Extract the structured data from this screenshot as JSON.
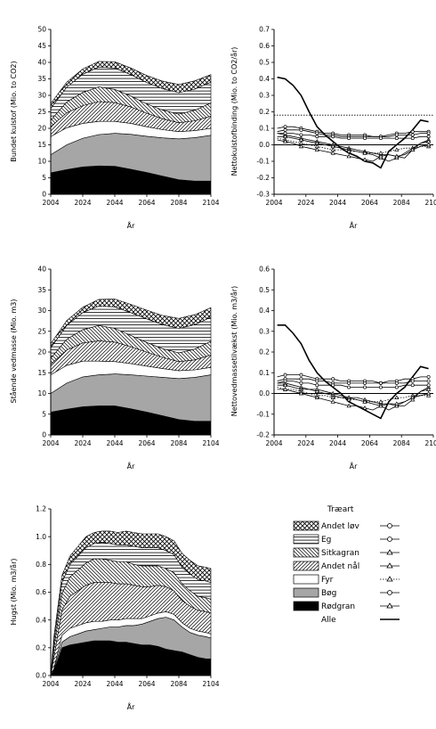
{
  "x_ticks": [
    "2004",
    "2024",
    "2044",
    "2064",
    "2084",
    "2104"
  ],
  "x_label": "År",
  "legend": {
    "title": "Træart",
    "items": [
      {
        "label": "Andet løv",
        "fill": "crosshatch",
        "marker": "circle"
      },
      {
        "label": "Eg",
        "fill": "hlines",
        "marker": "circle"
      },
      {
        "label": "Sitkagran",
        "fill": "bdiag",
        "marker": "triangle"
      },
      {
        "label": "Andet nål",
        "fill": "fdiag",
        "marker": "triangle"
      },
      {
        "label": "Fyr",
        "fill": "white",
        "marker": "triangle"
      },
      {
        "label": "Bøg",
        "fill": "gray",
        "marker": "circle"
      },
      {
        "label": "Rødgran",
        "fill": "black",
        "marker": "triangle"
      },
      {
        "label": "Alle",
        "fill": "none",
        "marker": "none"
      }
    ]
  },
  "colors": {
    "bog": "#a6a6a6",
    "rodgran": "#000000",
    "line": "#000000"
  },
  "chart_data": [
    {
      "id": "carbon-stock",
      "type": "area",
      "ylabel": "Bundet kulstof (Mio. to CO2)",
      "ylim": [
        0,
        50
      ],
      "yticks": [
        0,
        5,
        10,
        15,
        20,
        25,
        30,
        35,
        40,
        45,
        50
      ],
      "xlim": [
        2004,
        2104
      ],
      "x": [
        2004,
        2014,
        2024,
        2034,
        2044,
        2054,
        2064,
        2074,
        2084,
        2094,
        2104
      ],
      "stack_order": [
        "Rødgran",
        "Bøg",
        "Fyr",
        "Andet nål",
        "Sitkagran",
        "Eg",
        "Andet løv"
      ],
      "series": [
        {
          "name": "Rødgran",
          "values": [
            6.5,
            7.5,
            8.3,
            8.6,
            8.5,
            7.6,
            6.6,
            5.5,
            4.4,
            4.0,
            4.0
          ]
        },
        {
          "name": "Bøg",
          "values": [
            5.5,
            7.5,
            8.7,
            9.5,
            10.0,
            10.6,
            11.0,
            11.6,
            12.4,
            13.2,
            13.9
          ]
        },
        {
          "name": "Fyr",
          "values": [
            5.5,
            5.2,
            4.5,
            4.0,
            3.6,
            3.3,
            2.9,
            2.5,
            2.2,
            2.1,
            2.1
          ]
        },
        {
          "name": "Andet nål",
          "values": [
            3.0,
            4.5,
            5.4,
            6.0,
            5.7,
            5.0,
            4.1,
            3.3,
            2.7,
            3.0,
            3.7
          ]
        },
        {
          "name": "Sitkagran",
          "values": [
            2.0,
            3.3,
            4.0,
            4.5,
            4.0,
            3.3,
            2.8,
            2.6,
            2.6,
            3.2,
            4.0
          ]
        },
        {
          "name": "Eg",
          "values": [
            3.5,
            4.5,
            5.5,
            6.0,
            6.5,
            6.5,
            6.5,
            6.5,
            6.5,
            6.4,
            6.3
          ]
        },
        {
          "name": "Andet løv",
          "values": [
            1.5,
            1.5,
            1.6,
            1.7,
            1.9,
            2.0,
            2.1,
            2.3,
            2.5,
            2.5,
            2.3
          ]
        }
      ]
    },
    {
      "id": "carbon-flux",
      "type": "line",
      "ylabel": "Nettokulstofbinding (Mio. to CO2/år)",
      "ylim": [
        -0.3,
        0.7
      ],
      "yticks": [
        -0.3,
        -0.2,
        -0.1,
        0.0,
        0.1,
        0.2,
        0.3,
        0.4,
        0.5,
        0.6,
        0.7
      ],
      "xlim": [
        2004,
        2104
      ],
      "reference_line": 0.18,
      "x": [
        2006,
        2011,
        2016,
        2021,
        2026,
        2031,
        2036,
        2041,
        2046,
        2051,
        2056,
        2061,
        2066,
        2071,
        2076,
        2081,
        2086,
        2091,
        2096,
        2101
      ],
      "series": [
        {
          "name": "Alle",
          "marker": "none",
          "values": [
            0.41,
            0.4,
            0.36,
            0.3,
            0.2,
            0.11,
            0.06,
            0.02,
            -0.02,
            -0.05,
            -0.07,
            -0.1,
            -0.11,
            -0.14,
            -0.04,
            0.0,
            0.04,
            0.09,
            0.15,
            0.14
          ]
        },
        {
          "name": "Andet løv",
          "marker": "circle",
          "values": [
            0.1,
            0.11,
            0.11,
            0.1,
            0.09,
            0.08,
            0.07,
            0.07,
            0.06,
            0.06,
            0.06,
            0.06,
            0.05,
            0.05,
            0.06,
            0.07,
            0.07,
            0.08,
            0.08,
            0.08
          ]
        },
        {
          "name": "Eg",
          "marker": "circle",
          "values": [
            0.08,
            0.09,
            0.09,
            0.09,
            0.08,
            0.07,
            0.06,
            0.06,
            0.05,
            0.05,
            0.05,
            0.05,
            0.05,
            0.05,
            0.05,
            0.06,
            0.06,
            0.06,
            0.07,
            0.07
          ]
        },
        {
          "name": "Sitkagran",
          "marker": "triangle",
          "values": [
            0.07,
            0.06,
            0.05,
            0.04,
            0.03,
            0.02,
            0.01,
            0.0,
            -0.01,
            -0.02,
            -0.03,
            -0.04,
            -0.05,
            -0.06,
            -0.06,
            -0.07,
            -0.08,
            -0.03,
            0.01,
            0.03
          ]
        },
        {
          "name": "Andet nål",
          "marker": "triangle",
          "values": [
            0.05,
            0.05,
            0.04,
            0.03,
            0.02,
            0.01,
            0.0,
            -0.01,
            -0.02,
            -0.03,
            -0.04,
            -0.05,
            -0.06,
            -0.08,
            -0.1,
            -0.08,
            -0.05,
            -0.02,
            0.01,
            0.02
          ]
        },
        {
          "name": "Fyr",
          "marker": "triangle",
          "values": [
            0.04,
            0.03,
            0.02,
            0.01,
            0.0,
            -0.01,
            -0.02,
            -0.03,
            -0.03,
            -0.04,
            -0.04,
            -0.05,
            -0.05,
            -0.05,
            -0.04,
            -0.03,
            -0.02,
            -0.02,
            -0.01,
            -0.01
          ]
        },
        {
          "name": "Bøg",
          "marker": "circle",
          "values": [
            0.07,
            0.07,
            0.07,
            0.06,
            0.06,
            0.05,
            0.05,
            0.05,
            0.04,
            0.04,
            0.04,
            0.04,
            0.04,
            0.04,
            0.04,
            0.04,
            0.04,
            0.04,
            0.05,
            0.05
          ]
        },
        {
          "name": "Rødgran",
          "marker": "triangle",
          "values": [
            0.03,
            0.02,
            0.01,
            -0.01,
            -0.02,
            -0.03,
            -0.04,
            -0.05,
            -0.06,
            -0.07,
            -0.08,
            -0.09,
            -0.1,
            -0.07,
            -0.06,
            -0.07,
            -0.06,
            -0.03,
            -0.01,
            0.0
          ]
        }
      ]
    },
    {
      "id": "wood-stock",
      "type": "area",
      "ylabel": "Stående vedmasse (Mio. m3)",
      "ylim": [
        0,
        40
      ],
      "yticks": [
        0,
        5,
        10,
        15,
        20,
        25,
        30,
        35,
        40
      ],
      "xlim": [
        2004,
        2104
      ],
      "x": [
        2004,
        2014,
        2024,
        2034,
        2044,
        2054,
        2064,
        2074,
        2084,
        2094,
        2104
      ],
      "stack_order": [
        "Rødgran",
        "Bøg",
        "Fyr",
        "Andet nål",
        "Sitkagran",
        "Eg",
        "Andet løv"
      ],
      "series": [
        {
          "name": "Rødgran",
          "values": [
            5.5,
            6.2,
            6.8,
            7.0,
            7.0,
            6.3,
            5.5,
            4.6,
            3.7,
            3.3,
            3.3
          ]
        },
        {
          "name": "Bøg",
          "values": [
            4.5,
            6.3,
            7.2,
            7.5,
            7.7,
            8.2,
            8.7,
            9.3,
            9.9,
            10.6,
            11.2
          ]
        },
        {
          "name": "Fyr",
          "values": [
            4.5,
            4.3,
            3.8,
            3.3,
            3.0,
            2.7,
            2.4,
            2.1,
            1.9,
            1.8,
            1.8
          ]
        },
        {
          "name": "Andet nål",
          "values": [
            2.5,
            3.7,
            4.4,
            4.9,
            4.7,
            4.1,
            3.4,
            2.7,
            2.2,
            2.4,
            3.0
          ]
        },
        {
          "name": "Sitkagran",
          "values": [
            1.5,
            2.6,
            3.2,
            3.7,
            3.3,
            2.7,
            2.3,
            2.1,
            2.1,
            2.6,
            3.3
          ]
        },
        {
          "name": "Eg",
          "values": [
            2.5,
            3.3,
            4.1,
            4.7,
            5.2,
            5.5,
            5.7,
            5.8,
            5.9,
            5.9,
            5.8
          ]
        },
        {
          "name": "Andet løv",
          "values": [
            1.0,
            1.2,
            1.3,
            1.6,
            1.9,
            2.0,
            2.1,
            2.2,
            2.4,
            2.4,
            2.3
          ]
        }
      ]
    },
    {
      "id": "wood-growth",
      "type": "line",
      "ylabel": "Nettovedmassetilvækst (Mio. m3/år)",
      "ylim": [
        -0.2,
        0.6
      ],
      "yticks": [
        -0.2,
        -0.1,
        0.0,
        0.1,
        0.2,
        0.3,
        0.4,
        0.5,
        0.6
      ],
      "xlim": [
        2004,
        2104
      ],
      "x": [
        2006,
        2011,
        2016,
        2021,
        2026,
        2031,
        2036,
        2041,
        2046,
        2051,
        2056,
        2061,
        2066,
        2071,
        2076,
        2081,
        2086,
        2091,
        2096,
        2101
      ],
      "series": [
        {
          "name": "Alle",
          "marker": "none",
          "values": [
            0.33,
            0.33,
            0.29,
            0.24,
            0.16,
            0.1,
            0.06,
            0.03,
            0.0,
            -0.04,
            -0.06,
            -0.08,
            -0.1,
            -0.12,
            -0.04,
            0.0,
            0.03,
            0.08,
            0.13,
            0.12
          ]
        },
        {
          "name": "Andet løv",
          "marker": "circle",
          "values": [
            0.08,
            0.09,
            0.09,
            0.09,
            0.08,
            0.07,
            0.07,
            0.07,
            0.06,
            0.06,
            0.06,
            0.06,
            0.06,
            0.05,
            0.06,
            0.06,
            0.07,
            0.07,
            0.08,
            0.08
          ]
        },
        {
          "name": "Eg",
          "marker": "circle",
          "values": [
            0.06,
            0.07,
            0.07,
            0.07,
            0.07,
            0.06,
            0.06,
            0.05,
            0.05,
            0.05,
            0.05,
            0.05,
            0.05,
            0.05,
            0.05,
            0.05,
            0.05,
            0.06,
            0.06,
            0.06
          ]
        },
        {
          "name": "Sitkagran",
          "marker": "triangle",
          "values": [
            0.05,
            0.05,
            0.04,
            0.03,
            0.02,
            0.02,
            0.01,
            0.0,
            -0.01,
            -0.02,
            -0.02,
            -0.03,
            -0.04,
            -0.05,
            -0.05,
            -0.06,
            -0.06,
            -0.03,
            0.01,
            0.03
          ]
        },
        {
          "name": "Andet nål",
          "marker": "triangle",
          "values": [
            0.04,
            0.04,
            0.03,
            0.02,
            0.02,
            0.01,
            0.0,
            -0.01,
            -0.02,
            -0.02,
            -0.03,
            -0.04,
            -0.05,
            -0.06,
            -0.08,
            -0.06,
            -0.04,
            -0.02,
            0.01,
            0.02
          ]
        },
        {
          "name": "Fyr",
          "marker": "triangle",
          "values": [
            0.03,
            0.02,
            0.02,
            0.01,
            0.0,
            -0.01,
            -0.01,
            -0.02,
            -0.02,
            -0.03,
            -0.03,
            -0.04,
            -0.04,
            -0.04,
            -0.03,
            -0.02,
            -0.02,
            -0.01,
            -0.01,
            -0.01
          ]
        },
        {
          "name": "Bøg",
          "marker": "circle",
          "values": [
            0.05,
            0.06,
            0.06,
            0.05,
            0.05,
            0.04,
            0.04,
            0.04,
            0.04,
            0.03,
            0.03,
            0.03,
            0.03,
            0.03,
            0.03,
            0.03,
            0.04,
            0.04,
            0.04,
            0.04
          ]
        },
        {
          "name": "Rødgran",
          "marker": "triangle",
          "values": [
            0.02,
            0.02,
            0.01,
            0.0,
            -0.01,
            -0.02,
            -0.03,
            -0.04,
            -0.05,
            -0.06,
            -0.06,
            -0.07,
            -0.08,
            -0.06,
            -0.05,
            -0.05,
            -0.04,
            -0.02,
            -0.01,
            0.0
          ]
        }
      ]
    },
    {
      "id": "harvest",
      "type": "area",
      "ylabel": "Hugst (Mio. m3/år)",
      "ylim": [
        0,
        1.2
      ],
      "yticks": [
        0.0,
        0.2,
        0.4,
        0.6,
        0.8,
        1.0,
        1.2
      ],
      "xlim": [
        2004,
        2104
      ],
      "x": [
        2004,
        2006,
        2011,
        2016,
        2021,
        2026,
        2031,
        2036,
        2041,
        2046,
        2051,
        2056,
        2061,
        2066,
        2071,
        2076,
        2081,
        2086,
        2091,
        2096,
        2101,
        2104
      ],
      "stack_order": [
        "Rødgran",
        "Bøg",
        "Fyr",
        "Andet nål",
        "Sitkagran",
        "Eg",
        "Andet løv"
      ],
      "series": [
        {
          "name": "Rødgran",
          "values": [
            0.0,
            0.03,
            0.2,
            0.22,
            0.23,
            0.24,
            0.25,
            0.25,
            0.25,
            0.24,
            0.24,
            0.23,
            0.22,
            0.22,
            0.21,
            0.19,
            0.18,
            0.17,
            0.15,
            0.13,
            0.12,
            0.12
          ]
        },
        {
          "name": "Bøg",
          "values": [
            0.0,
            0.01,
            0.04,
            0.06,
            0.07,
            0.08,
            0.08,
            0.09,
            0.1,
            0.11,
            0.12,
            0.13,
            0.15,
            0.17,
            0.2,
            0.23,
            0.22,
            0.18,
            0.16,
            0.16,
            0.16,
            0.15
          ]
        },
        {
          "name": "Fyr",
          "values": [
            0.0,
            0.01,
            0.05,
            0.06,
            0.06,
            0.06,
            0.06,
            0.05,
            0.05,
            0.05,
            0.05,
            0.05,
            0.04,
            0.04,
            0.04,
            0.04,
            0.04,
            0.03,
            0.03,
            0.03,
            0.03,
            0.03
          ]
        },
        {
          "name": "Andet nål",
          "values": [
            0.0,
            0.08,
            0.18,
            0.23,
            0.25,
            0.27,
            0.28,
            0.28,
            0.27,
            0.26,
            0.25,
            0.24,
            0.23,
            0.21,
            0.2,
            0.18,
            0.17,
            0.16,
            0.16,
            0.15,
            0.15,
            0.15
          ]
        },
        {
          "name": "Sitkagran",
          "values": [
            0.0,
            0.06,
            0.12,
            0.14,
            0.15,
            0.16,
            0.17,
            0.17,
            0.16,
            0.16,
            0.16,
            0.15,
            0.15,
            0.15,
            0.14,
            0.13,
            0.13,
            0.12,
            0.11,
            0.1,
            0.1,
            0.1
          ]
        },
        {
          "name": "Eg",
          "values": [
            0.0,
            0.05,
            0.08,
            0.09,
            0.1,
            0.11,
            0.11,
            0.12,
            0.12,
            0.12,
            0.12,
            0.13,
            0.13,
            0.13,
            0.13,
            0.13,
            0.13,
            0.12,
            0.12,
            0.12,
            0.12,
            0.12
          ]
        },
        {
          "name": "Andet løv",
          "values": [
            0.0,
            0.04,
            0.05,
            0.06,
            0.07,
            0.08,
            0.08,
            0.08,
            0.09,
            0.09,
            0.1,
            0.1,
            0.1,
            0.1,
            0.1,
            0.1,
            0.1,
            0.1,
            0.1,
            0.1,
            0.1,
            0.1
          ]
        }
      ]
    }
  ]
}
